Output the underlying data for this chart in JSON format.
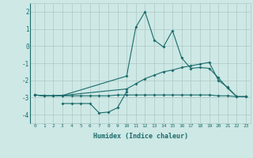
{
  "xlabel": "Humidex (Indice chaleur)",
  "bg_color": "#cde8e5",
  "grid_color": "#adc8c5",
  "line_color": "#1a6b6a",
  "xlim": [
    -0.5,
    23.5
  ],
  "ylim": [
    -4.5,
    2.5
  ],
  "yticks": [
    -4,
    -3,
    -2,
    -1,
    0,
    1,
    2
  ],
  "xticks": [
    0,
    1,
    2,
    3,
    4,
    5,
    6,
    7,
    8,
    9,
    10,
    11,
    12,
    13,
    14,
    15,
    16,
    17,
    18,
    19,
    20,
    21,
    22,
    23
  ],
  "line_bottom_x": [
    0,
    1,
    2,
    3,
    4,
    5,
    6,
    7,
    8,
    9,
    10,
    11,
    12,
    13,
    14,
    15,
    16,
    17,
    18,
    19,
    20,
    21,
    22,
    23
  ],
  "line_bottom_y": [
    -2.85,
    -2.9,
    -2.9,
    -2.9,
    -2.9,
    -2.9,
    -2.9,
    -2.9,
    -2.9,
    -2.85,
    -2.85,
    -2.85,
    -2.85,
    -2.85,
    -2.85,
    -2.85,
    -2.85,
    -2.85,
    -2.85,
    -2.85,
    -2.9,
    -2.9,
    -2.95,
    -2.95
  ],
  "line_top_x": [
    0,
    1,
    2,
    3,
    10,
    11,
    12,
    13,
    14,
    15,
    16,
    17,
    18,
    19,
    20,
    21,
    22,
    23
  ],
  "line_top_y": [
    -2.85,
    -2.9,
    -2.9,
    -2.88,
    -2.5,
    -2.2,
    -1.9,
    -1.7,
    -1.5,
    -1.4,
    -1.25,
    -1.15,
    -1.05,
    -0.95,
    -2.0,
    -2.4,
    -2.95,
    -2.95
  ],
  "line_main_x": [
    0,
    1,
    2,
    3,
    10,
    11,
    12,
    13,
    14,
    15,
    16,
    17,
    18,
    19,
    20,
    21,
    22,
    23
  ],
  "line_main_y": [
    -2.85,
    -2.9,
    -2.9,
    -2.88,
    -1.75,
    1.1,
    2.0,
    0.35,
    -0.05,
    0.9,
    -0.7,
    -1.3,
    -1.25,
    -1.3,
    -1.85,
    -2.45,
    -2.95,
    -2.95
  ],
  "line_low_x": [
    3,
    4,
    5,
    6,
    7,
    8,
    9,
    10
  ],
  "line_low_y": [
    -3.35,
    -3.35,
    -3.35,
    -3.35,
    -3.9,
    -3.85,
    -3.6,
    -2.65
  ]
}
